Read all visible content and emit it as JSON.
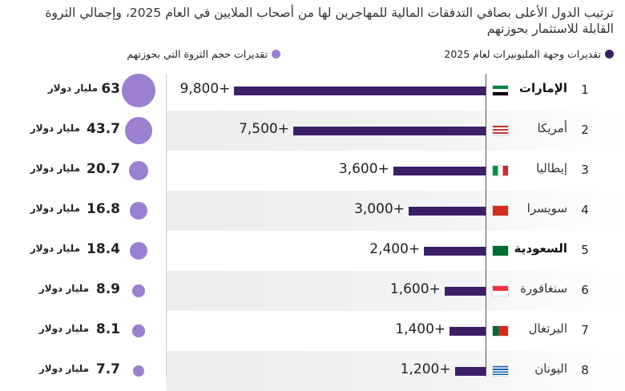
{
  "chart_data": {
    "type": "bar",
    "title": "ترتيب الدول الأعلى بصافي التدفقات المالية للمهاجرين لها من أصحاب الملايين في العام 2025، وإجمالي الثروة القابلة للاستثمار بحوزتهم",
    "legend": [
      {
        "label": "تقديرات وجهة المليونيرات لعام 2025",
        "color": "#3b1f66"
      },
      {
        "label": "تقديرات حجم الثروة التي بحوزتهم",
        "color": "#9b7fd0"
      }
    ],
    "unit": "مليار دولار",
    "rows": [
      {
        "rank": "1",
        "country": "الإمارات",
        "bold": true,
        "flag": "ae",
        "label": "9,800+",
        "value": 9800,
        "wealth": "63",
        "wealth_value": 63
      },
      {
        "rank": "2",
        "country": "أمريكا",
        "bold": false,
        "flag": "us",
        "label": "7,500+",
        "value": 7500,
        "wealth": "43.7",
        "wealth_value": 43.7
      },
      {
        "rank": "3",
        "country": "إيطاليا",
        "bold": false,
        "flag": "it",
        "label": "3,600+",
        "value": 3600,
        "wealth": "20.7",
        "wealth_value": 20.7
      },
      {
        "rank": "4",
        "country": "سويسرا",
        "bold": false,
        "flag": "ch",
        "label": "3,000+",
        "value": 3000,
        "wealth": "16.8",
        "wealth_value": 16.8
      },
      {
        "rank": "5",
        "country": "السعودية",
        "bold": true,
        "flag": "sa",
        "label": "2,400+",
        "value": 2400,
        "wealth": "18.4",
        "wealth_value": 18.4
      },
      {
        "rank": "6",
        "country": "سنغافورة",
        "bold": false,
        "flag": "sg",
        "label": "1,600+",
        "value": 1600,
        "wealth": "8.9",
        "wealth_value": 8.9
      },
      {
        "rank": "7",
        "country": "البرتغال",
        "bold": false,
        "flag": "pt",
        "label": "1,400+",
        "value": 1400,
        "wealth": "8.1",
        "wealth_value": 8.1
      },
      {
        "rank": "8",
        "country": "اليونان",
        "bold": false,
        "flag": "gr",
        "label": "1,200+",
        "value": 1200,
        "wealth": "7.7",
        "wealth_value": 7.7
      }
    ]
  }
}
